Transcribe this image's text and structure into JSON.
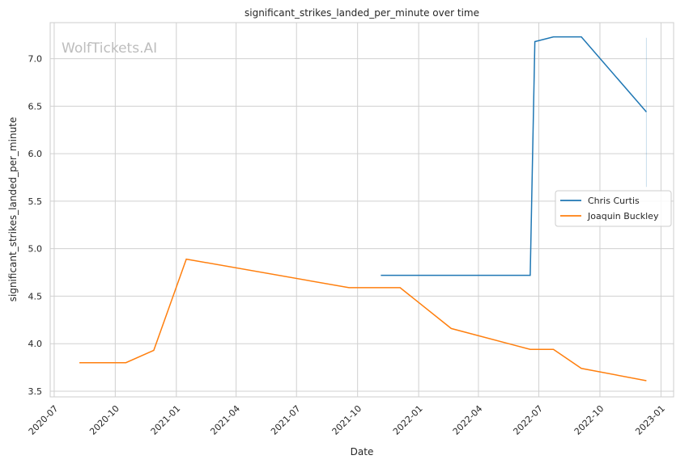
{
  "chart_data": {
    "type": "line",
    "title": "significant_strikes_landed_per_minute over time",
    "xlabel": "Date",
    "ylabel": "significant_strikes_landed_per_minute",
    "watermark": "WolfTickets.AI",
    "xlim": [
      "2020-06-25",
      "2023-01-20"
    ],
    "ylim": [
      3.44,
      7.38
    ],
    "x_ticks": [
      "2020-07",
      "2020-10",
      "2021-01",
      "2021-04",
      "2021-07",
      "2021-10",
      "2022-01",
      "2022-04",
      "2022-07",
      "2022-10",
      "2023-01"
    ],
    "y_ticks": [
      "3.5",
      "4.0",
      "4.5",
      "5.0",
      "5.5",
      "6.0",
      "6.5",
      "7.0"
    ],
    "grid": true,
    "legend_position": "right",
    "series": [
      {
        "name": "Chris Curtis",
        "color": "#1f77b4",
        "x": [
          "2021-11-05",
          "2022-06-18",
          "2022-06-25",
          "2022-07-23",
          "2022-09-03",
          "2022-12-10"
        ],
        "y": [
          4.72,
          4.72,
          7.18,
          7.23,
          7.23,
          6.44
        ],
        "band": {
          "x": "2022-12-10",
          "low": 5.65,
          "high": 7.22
        }
      },
      {
        "name": "Joaquin Buckley",
        "color": "#ff7f0e",
        "x": [
          "2020-08-08",
          "2020-10-17",
          "2020-11-28",
          "2021-01-16",
          "2021-09-18",
          "2021-12-04",
          "2022-02-19",
          "2022-06-18",
          "2022-07-23",
          "2022-09-03",
          "2022-12-10"
        ],
        "y": [
          3.8,
          3.8,
          3.93,
          4.89,
          4.59,
          4.59,
          4.16,
          3.94,
          3.94,
          3.74,
          3.61
        ]
      }
    ]
  }
}
